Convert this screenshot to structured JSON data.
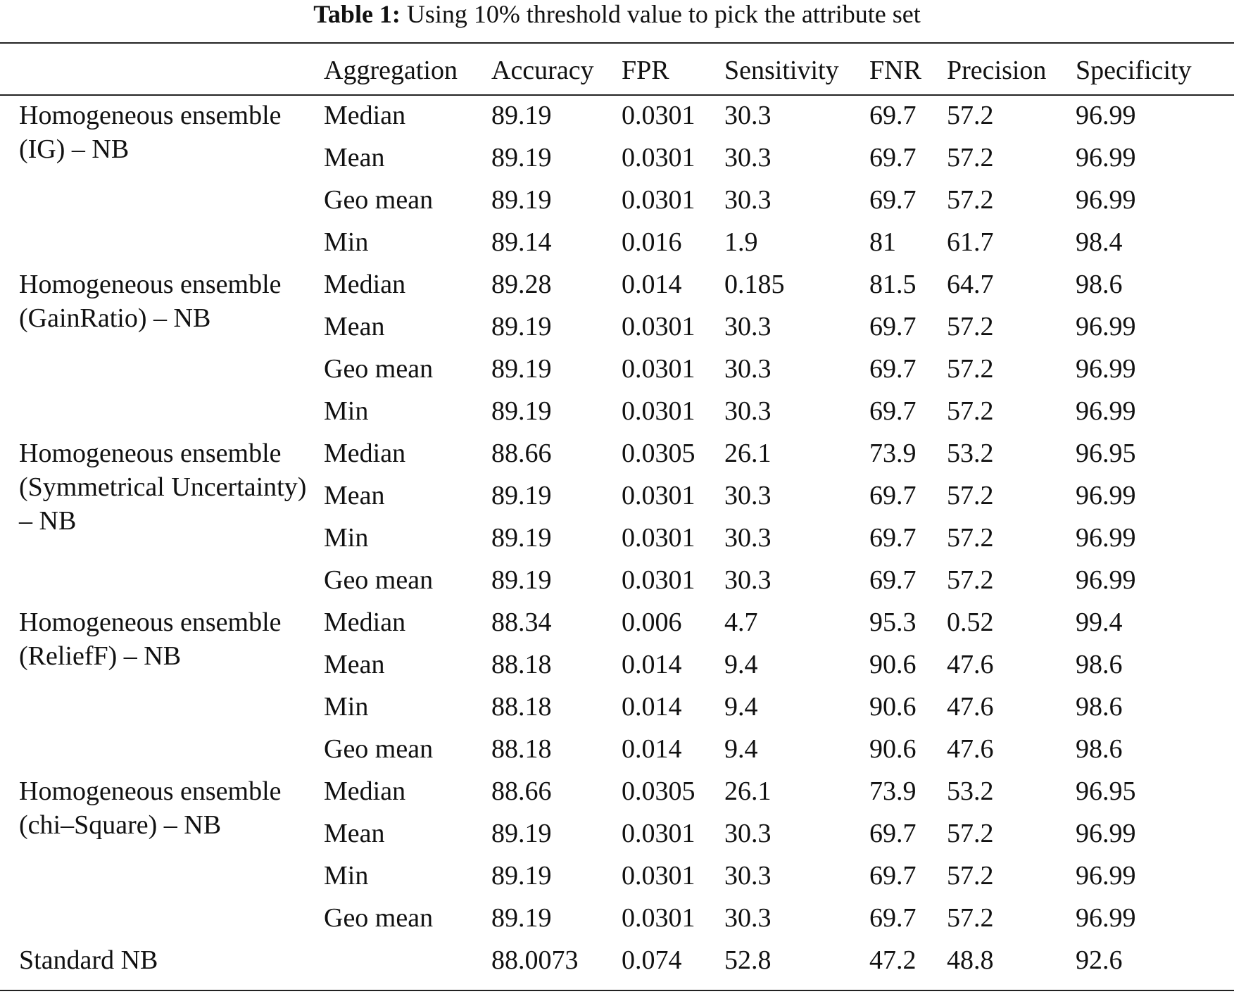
{
  "caption": {
    "label": "Table 1:",
    "text": "Using 10% threshold value to pick the attribute set"
  },
  "headers": [
    "",
    "Aggregation",
    "Accuracy",
    "FPR",
    "Sensitivity",
    "FNR",
    "Precision",
    "Specificity"
  ],
  "groups": [
    {
      "method": "Homogeneous ensemble (IG) – NB",
      "rows": [
        [
          "Median",
          "89.19",
          "0.0301",
          "30.3",
          "69.7",
          "57.2",
          "96.99"
        ],
        [
          "Mean",
          "89.19",
          "0.0301",
          "30.3",
          "69.7",
          "57.2",
          "96.99"
        ],
        [
          "Geo mean",
          "89.19",
          "0.0301",
          "30.3",
          "69.7",
          "57.2",
          "96.99"
        ],
        [
          "Min",
          "89.14",
          "0.016",
          "1.9",
          "81",
          "61.7",
          "98.4"
        ]
      ]
    },
    {
      "method": "Homogeneous ensemble (GainRatio) – NB",
      "rows": [
        [
          "Median",
          "89.28",
          "0.014",
          "0.185",
          "81.5",
          "64.7",
          "98.6"
        ],
        [
          "Mean",
          "89.19",
          "0.0301",
          "30.3",
          "69.7",
          "57.2",
          "96.99"
        ],
        [
          "Geo mean",
          "89.19",
          "0.0301",
          "30.3",
          "69.7",
          "57.2",
          "96.99"
        ],
        [
          "Min",
          "89.19",
          "0.0301",
          "30.3",
          "69.7",
          "57.2",
          "96.99"
        ]
      ]
    },
    {
      "method": "Homogeneous ensemble (Symmetrical Uncertainty) – NB",
      "rows": [
        [
          "Median",
          "88.66",
          "0.0305",
          "26.1",
          "73.9",
          "53.2",
          "96.95"
        ],
        [
          "Mean",
          "89.19",
          "0.0301",
          "30.3",
          "69.7",
          "57.2",
          "96.99"
        ],
        [
          "Min",
          "89.19",
          "0.0301",
          "30.3",
          "69.7",
          "57.2",
          "96.99"
        ],
        [
          "Geo mean",
          "89.19",
          "0.0301",
          "30.3",
          "69.7",
          "57.2",
          "96.99"
        ]
      ]
    },
    {
      "method": "Homogeneous ensemble (ReliefF) – NB",
      "rows": [
        [
          "Median",
          "88.34",
          "0.006",
          "4.7",
          "95.3",
          "0.52",
          "99.4"
        ],
        [
          "Mean",
          "88.18",
          "0.014",
          "9.4",
          "90.6",
          "47.6",
          "98.6"
        ],
        [
          "Min",
          "88.18",
          "0.014",
          "9.4",
          "90.6",
          "47.6",
          "98.6"
        ],
        [
          "Geo mean",
          "88.18",
          "0.014",
          "9.4",
          "90.6",
          "47.6",
          "98.6"
        ]
      ]
    },
    {
      "method": "Homogeneous ensemble (chi–Square) – NB",
      "rows": [
        [
          "Median",
          "88.66",
          "0.0305",
          "26.1",
          "73.9",
          "53.2",
          "96.95"
        ],
        [
          "Mean",
          "89.19",
          "0.0301",
          "30.3",
          "69.7",
          "57.2",
          "96.99"
        ],
        [
          "Min",
          "89.19",
          "0.0301",
          "30.3",
          "69.7",
          "57.2",
          "96.99"
        ],
        [
          "Geo mean",
          "89.19",
          "0.0301",
          "30.3",
          "69.7",
          "57.2",
          "96.99"
        ]
      ]
    }
  ],
  "standard": [
    "Standard NB",
    "",
    "88.0073",
    "0.074",
    "52.8",
    "47.2",
    "48.8",
    "92.6"
  ]
}
